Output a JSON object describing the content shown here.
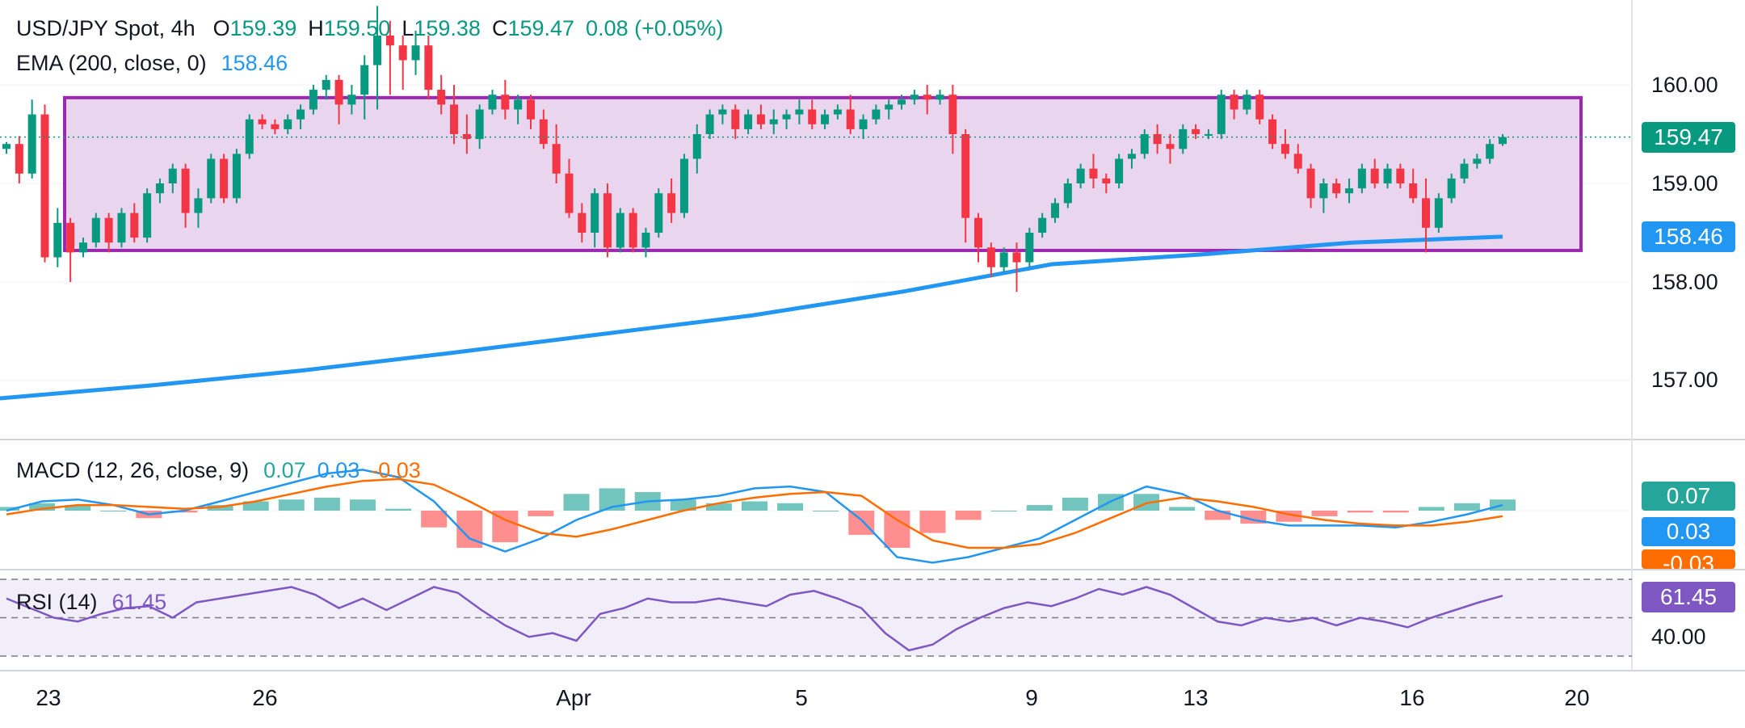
{
  "header": {
    "symbol": "USD/JPY Spot, 4h",
    "o_label": "O",
    "o_value": "159.39",
    "h_label": "H",
    "h_value": "159.50",
    "l_label": "L",
    "l_value": "159.38",
    "c_label": "C",
    "c_value": "159.47",
    "change": "0.08 (+0.05%)"
  },
  "ema_legend": {
    "label": "EMA (200, close, 0)",
    "value": "158.46"
  },
  "macd_legend": {
    "label": "MACD (12, 26, close, 9)",
    "hist": "0.07",
    "macd": "0.03",
    "signal": "-0.03"
  },
  "rsi_legend": {
    "label": "RSI (14)",
    "value": "61.45"
  },
  "price_axis": {
    "ticks": [
      "160.00",
      "159.00",
      "158.00",
      "157.00"
    ],
    "last_price": "159.47",
    "ema_value": "158.46"
  },
  "macd_axis": {
    "hist": "0.07",
    "macd": "0.03",
    "signal": "-0.03"
  },
  "rsi_axis": {
    "value": "61.45",
    "tick": "40.00"
  },
  "x_axis": {
    "labels": [
      "23",
      "26",
      "Apr",
      "5",
      "9",
      "13",
      "16",
      "20"
    ]
  },
  "colors": {
    "up": "#089981",
    "down": "#f23645",
    "ema": "#2196f3",
    "macd": "#2196f3",
    "signal": "#ff6d00",
    "rsi": "#7e57c2",
    "range_fill": "#e9d5ee",
    "range_border": "#9c27b0"
  },
  "chart_data": {
    "type": "line",
    "title": "USD/JPY Spot, 4h",
    "price_ylim": [
      156.4,
      160.8
    ],
    "range_box": {
      "top": 159.87,
      "bottom": 158.32
    },
    "last_close": 159.47,
    "candles": [
      [
        159.35,
        159.42,
        159.3,
        159.4
      ],
      [
        159.4,
        159.48,
        159.0,
        159.1
      ],
      [
        159.1,
        159.85,
        159.05,
        159.7
      ],
      [
        159.7,
        159.8,
        158.2,
        158.25
      ],
      [
        158.25,
        158.75,
        158.15,
        158.6
      ],
      [
        158.6,
        158.65,
        158.0,
        158.3
      ],
      [
        158.3,
        158.45,
        158.25,
        158.4
      ],
      [
        158.4,
        158.7,
        158.35,
        158.65
      ],
      [
        158.65,
        158.7,
        158.3,
        158.4
      ],
      [
        158.4,
        158.75,
        158.35,
        158.7
      ],
      [
        158.7,
        158.8,
        158.4,
        158.45
      ],
      [
        158.45,
        158.95,
        158.4,
        158.9
      ],
      [
        158.9,
        159.05,
        158.8,
        159.0
      ],
      [
        159.0,
        159.2,
        158.9,
        159.15
      ],
      [
        159.15,
        159.2,
        158.55,
        158.7
      ],
      [
        158.7,
        158.95,
        158.55,
        158.85
      ],
      [
        158.85,
        159.3,
        158.8,
        159.25
      ],
      [
        159.25,
        159.3,
        158.8,
        158.85
      ],
      [
        158.85,
        159.35,
        158.8,
        159.3
      ],
      [
        159.3,
        159.7,
        159.25,
        159.65
      ],
      [
        159.65,
        159.7,
        159.55,
        159.6
      ],
      [
        159.6,
        159.65,
        159.5,
        159.55
      ],
      [
        159.55,
        159.7,
        159.5,
        159.65
      ],
      [
        159.65,
        159.8,
        159.55,
        159.75
      ],
      [
        159.75,
        160.0,
        159.7,
        159.95
      ],
      [
        159.95,
        160.1,
        159.85,
        160.05
      ],
      [
        160.05,
        160.1,
        159.6,
        159.8
      ],
      [
        159.8,
        160.0,
        159.7,
        159.9
      ],
      [
        159.9,
        160.3,
        159.65,
        160.2
      ],
      [
        160.2,
        160.8,
        159.75,
        160.5
      ],
      [
        160.5,
        160.65,
        159.9,
        160.4
      ],
      [
        160.4,
        160.5,
        159.95,
        160.25
      ],
      [
        160.25,
        160.55,
        160.1,
        160.4
      ],
      [
        160.4,
        160.5,
        159.85,
        159.95
      ],
      [
        159.95,
        160.1,
        159.7,
        159.8
      ],
      [
        159.8,
        160.0,
        159.4,
        159.5
      ],
      [
        159.5,
        159.7,
        159.3,
        159.45
      ],
      [
        159.45,
        159.8,
        159.35,
        159.75
      ],
      [
        159.75,
        159.95,
        159.7,
        159.9
      ],
      [
        159.9,
        160.05,
        159.65,
        159.75
      ],
      [
        159.75,
        159.9,
        159.6,
        159.85
      ],
      [
        159.85,
        159.9,
        159.55,
        159.65
      ],
      [
        159.65,
        159.75,
        159.35,
        159.4
      ],
      [
        159.4,
        159.6,
        159.0,
        159.1
      ],
      [
        159.1,
        159.25,
        158.65,
        158.7
      ],
      [
        158.7,
        158.8,
        158.4,
        158.5
      ],
      [
        158.5,
        158.95,
        158.35,
        158.9
      ],
      [
        158.9,
        159.0,
        158.25,
        158.35
      ],
      [
        158.35,
        158.75,
        158.3,
        158.7
      ],
      [
        158.7,
        158.75,
        158.3,
        158.35
      ],
      [
        158.35,
        158.55,
        158.25,
        158.5
      ],
      [
        158.5,
        158.95,
        158.45,
        158.9
      ],
      [
        158.9,
        159.05,
        158.6,
        158.7
      ],
      [
        158.7,
        159.3,
        158.65,
        159.25
      ],
      [
        159.25,
        159.6,
        159.1,
        159.5
      ],
      [
        159.5,
        159.75,
        159.45,
        159.7
      ],
      [
        159.7,
        159.8,
        159.6,
        159.75
      ],
      [
        159.75,
        159.8,
        159.45,
        159.55
      ],
      [
        159.55,
        159.75,
        159.5,
        159.7
      ],
      [
        159.7,
        159.8,
        159.55,
        159.6
      ],
      [
        159.6,
        159.75,
        159.5,
        159.65
      ],
      [
        159.65,
        159.75,
        159.55,
        159.7
      ],
      [
        159.7,
        159.85,
        159.6,
        159.75
      ],
      [
        159.75,
        159.85,
        159.55,
        159.6
      ],
      [
        159.6,
        159.75,
        159.55,
        159.7
      ],
      [
        159.7,
        159.8,
        159.65,
        159.75
      ],
      [
        159.75,
        159.9,
        159.5,
        159.55
      ],
      [
        159.55,
        159.7,
        159.45,
        159.65
      ],
      [
        159.65,
        159.8,
        159.6,
        159.75
      ],
      [
        159.75,
        159.85,
        159.65,
        159.8
      ],
      [
        159.8,
        159.9,
        159.75,
        159.85
      ],
      [
        159.85,
        159.95,
        159.8,
        159.9
      ],
      [
        159.9,
        160.0,
        159.7,
        159.85
      ],
      [
        159.85,
        159.95,
        159.8,
        159.9
      ],
      [
        159.9,
        160.0,
        159.3,
        159.5
      ],
      [
        159.5,
        159.55,
        158.4,
        158.65
      ],
      [
        158.65,
        158.7,
        158.2,
        158.35
      ],
      [
        158.35,
        158.4,
        158.05,
        158.15
      ],
      [
        158.15,
        158.35,
        158.1,
        158.3
      ],
      [
        158.3,
        158.4,
        157.9,
        158.2
      ],
      [
        158.2,
        158.55,
        158.15,
        158.5
      ],
      [
        158.5,
        158.7,
        158.45,
        158.65
      ],
      [
        158.65,
        158.85,
        158.6,
        158.8
      ],
      [
        158.8,
        159.05,
        158.75,
        159.0
      ],
      [
        159.0,
        159.2,
        158.95,
        159.15
      ],
      [
        159.15,
        159.3,
        158.95,
        159.05
      ],
      [
        159.05,
        159.1,
        158.9,
        159.0
      ],
      [
        159.0,
        159.3,
        158.95,
        159.25
      ],
      [
        159.25,
        159.35,
        159.15,
        159.3
      ],
      [
        159.3,
        159.55,
        159.25,
        159.5
      ],
      [
        159.5,
        159.6,
        159.3,
        159.4
      ],
      [
        159.4,
        159.5,
        159.2,
        159.35
      ],
      [
        159.35,
        159.6,
        159.3,
        159.55
      ],
      [
        159.55,
        159.6,
        159.45,
        159.5
      ],
      [
        159.5,
        159.55,
        159.45,
        159.5
      ],
      [
        159.5,
        159.95,
        159.45,
        159.9
      ],
      [
        159.9,
        159.95,
        159.65,
        159.75
      ],
      [
        159.75,
        159.95,
        159.7,
        159.9
      ],
      [
        159.9,
        159.95,
        159.6,
        159.65
      ],
      [
        159.65,
        159.7,
        159.35,
        159.4
      ],
      [
        159.4,
        159.55,
        159.25,
        159.3
      ],
      [
        159.3,
        159.4,
        159.1,
        159.15
      ],
      [
        159.15,
        159.2,
        158.75,
        158.85
      ],
      [
        158.85,
        159.05,
        158.7,
        159.0
      ],
      [
        159.0,
        159.05,
        158.85,
        158.9
      ],
      [
        158.9,
        159.05,
        158.8,
        158.95
      ],
      [
        158.95,
        159.2,
        158.9,
        159.15
      ],
      [
        159.15,
        159.25,
        158.95,
        159.0
      ],
      [
        159.0,
        159.2,
        158.95,
        159.15
      ],
      [
        159.15,
        159.2,
        158.95,
        159.0
      ],
      [
        159.0,
        159.15,
        158.8,
        158.85
      ],
      [
        158.85,
        159.05,
        158.3,
        158.55
      ],
      [
        158.55,
        158.9,
        158.5,
        158.85
      ],
      [
        158.85,
        159.1,
        158.8,
        159.05
      ],
      [
        159.05,
        159.25,
        159.0,
        159.2
      ],
      [
        159.2,
        159.3,
        159.15,
        159.25
      ],
      [
        159.25,
        159.45,
        159.2,
        159.4
      ],
      [
        159.4,
        159.5,
        159.38,
        159.47
      ]
    ],
    "ema_200": [
      [
        0,
        156.82
      ],
      [
        0.1,
        156.95
      ],
      [
        0.2,
        157.1
      ],
      [
        0.3,
        157.28
      ],
      [
        0.4,
        157.47
      ],
      [
        0.5,
        157.66
      ],
      [
        0.6,
        157.9
      ],
      [
        0.7,
        158.18
      ],
      [
        0.8,
        158.28
      ],
      [
        0.9,
        158.4
      ],
      [
        1.0,
        158.46
      ]
    ],
    "macd": {
      "series": [
        {
          "name": "MACD",
          "values": [
            0.0,
            0.05,
            0.06,
            0.03,
            -0.02,
            0.0,
            0.05,
            0.1,
            0.15,
            0.2,
            0.22,
            0.18,
            0.05,
            -0.15,
            -0.22,
            -0.15,
            -0.05,
            0.02,
            0.05,
            0.06,
            0.08,
            0.12,
            0.13,
            0.1,
            -0.05,
            -0.25,
            -0.28,
            -0.25,
            -0.2,
            -0.15,
            -0.05,
            0.05,
            0.13,
            0.09,
            0.0,
            -0.05,
            -0.08,
            -0.08,
            -0.08,
            -0.09,
            -0.06,
            -0.02,
            0.03
          ]
        },
        {
          "name": "Signal",
          "values": [
            -0.02,
            0.01,
            0.03,
            0.03,
            0.02,
            0.01,
            0.02,
            0.05,
            0.09,
            0.13,
            0.16,
            0.17,
            0.14,
            0.05,
            -0.05,
            -0.12,
            -0.14,
            -0.1,
            -0.05,
            0.0,
            0.04,
            0.07,
            0.09,
            0.1,
            0.08,
            -0.05,
            -0.16,
            -0.2,
            -0.2,
            -0.18,
            -0.12,
            -0.04,
            0.04,
            0.07,
            0.05,
            0.02,
            -0.02,
            -0.05,
            -0.07,
            -0.08,
            -0.08,
            -0.06,
            -0.03
          ]
        }
      ],
      "ylim": [
        -0.3,
        0.25
      ]
    },
    "rsi": {
      "values": [
        60,
        55,
        50,
        48,
        52,
        55,
        56,
        50,
        58,
        60,
        62,
        64,
        66,
        62,
        55,
        60,
        54,
        60,
        66,
        63,
        54,
        46,
        40,
        42,
        38,
        52,
        55,
        60,
        58,
        58,
        60,
        58,
        56,
        62,
        64,
        60,
        55,
        42,
        33,
        36,
        44,
        50,
        55,
        58,
        56,
        60,
        65,
        62,
        66,
        62,
        55,
        48,
        46,
        50,
        48,
        50,
        46,
        50,
        48,
        45,
        50,
        54,
        58,
        61.45
      ],
      "ylim": [
        20,
        80
      ],
      "bands": [
        30,
        50,
        70
      ]
    }
  }
}
